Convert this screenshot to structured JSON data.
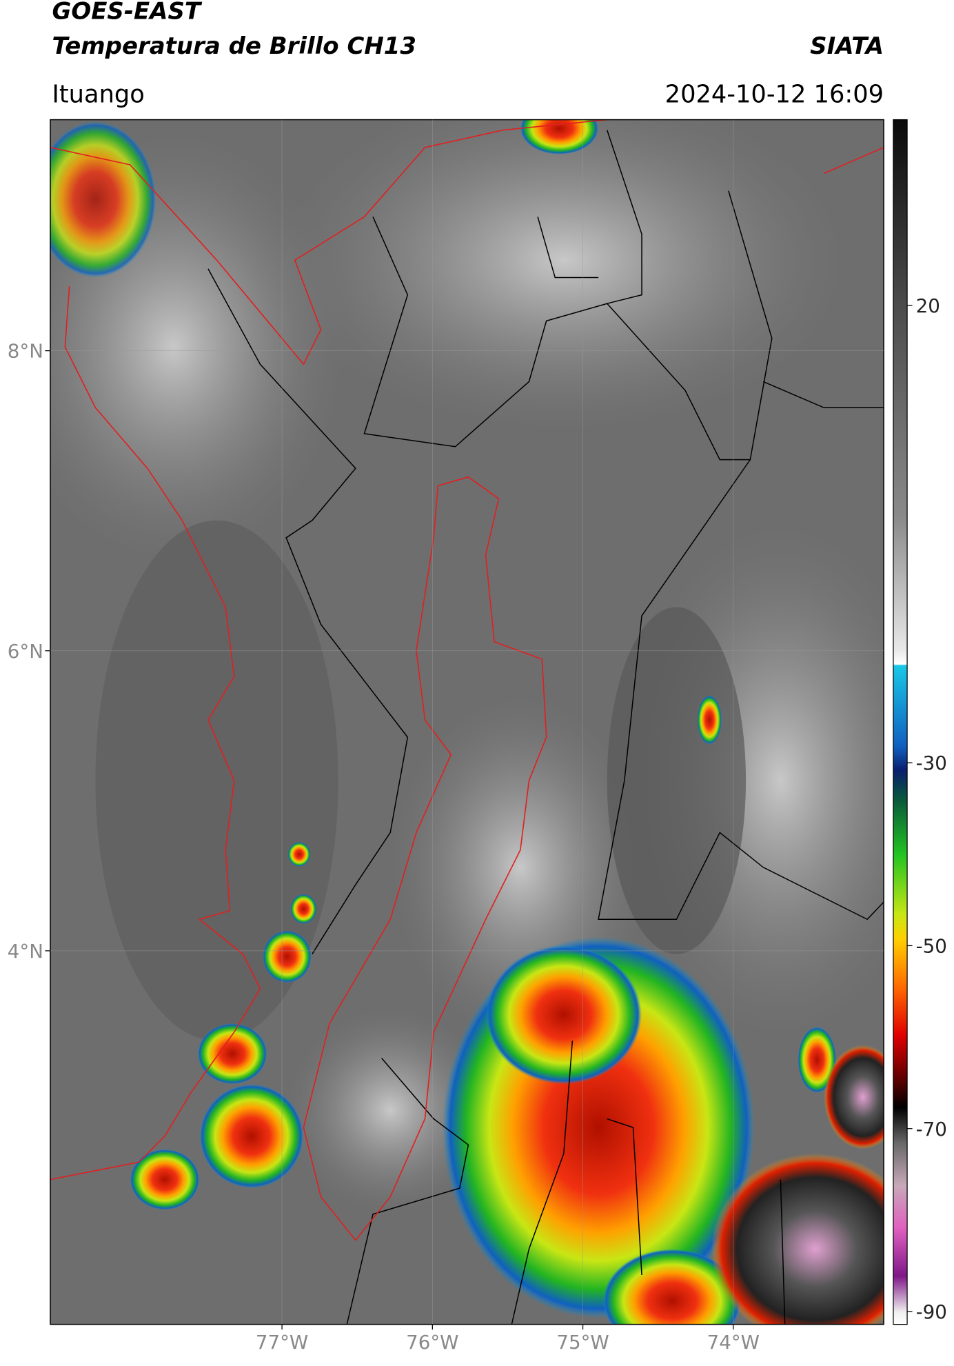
{
  "header": {
    "title_line1": "GOES-EAST",
    "title_line2": "Temperatura de Brillo CH13",
    "source": "SIATA",
    "location": "Ituango",
    "datetime": "2024-10-12 16:09"
  },
  "map": {
    "lonlim": [
      -78.54,
      -73.0
    ],
    "latlim": [
      1.51,
      9.54
    ],
    "lon_ticks": [
      {
        "value": -77,
        "label": "77°W"
      },
      {
        "value": -76,
        "label": "76°W"
      },
      {
        "value": -75,
        "label": "75°W"
      },
      {
        "value": -74,
        "label": "74°W"
      }
    ],
    "lat_ticks": [
      {
        "value": 8,
        "label": "8°N"
      },
      {
        "value": 6,
        "label": "6°N"
      },
      {
        "value": 4,
        "label": "4°N"
      }
    ]
  },
  "colorbar": {
    "range": [
      -91.4,
      40.3
    ],
    "ticks": [
      20,
      -30,
      -50,
      -70,
      -90
    ]
  }
}
